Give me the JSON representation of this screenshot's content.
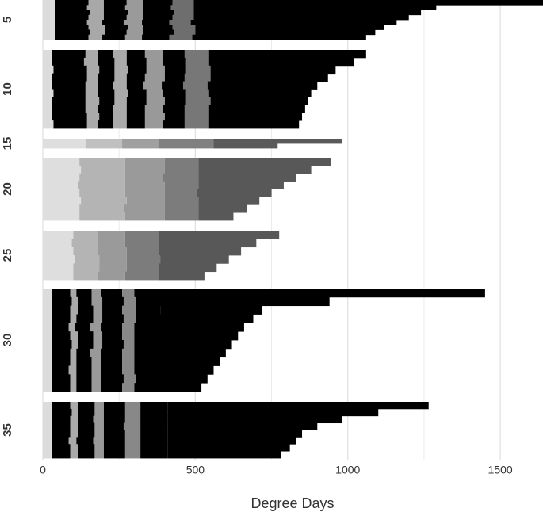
{
  "chart_data": {
    "type": "bar",
    "x_label": "Degree Days",
    "xlim": [
      0,
      1640
    ],
    "xticks": [
      0,
      500,
      1000,
      1500
    ],
    "minor_xticks": [
      250,
      750,
      1250
    ],
    "grid": true,
    "panels": [
      {
        "label": "5",
        "colors": [
          "#dcdcdc",
          "#000000",
          "#a8a8a8",
          "#000000",
          "#9a9a9a",
          "#000000",
          "#6e6e6e",
          "#000000"
        ],
        "rows": [
          [
            40,
            110,
            50,
            75,
            55,
            95,
            70,
            1145
          ],
          [
            40,
            105,
            55,
            70,
            60,
            90,
            75,
            795
          ],
          [
            40,
            115,
            45,
            80,
            50,
            100,
            65,
            745
          ],
          [
            40,
            110,
            50,
            75,
            55,
            95,
            70,
            705
          ],
          [
            40,
            105,
            50,
            70,
            60,
            90,
            70,
            675
          ],
          [
            40,
            110,
            55,
            75,
            50,
            95,
            75,
            620
          ],
          [
            40,
            115,
            50,
            70,
            55,
            100,
            70,
            590
          ],
          [
            40,
            110,
            45,
            75,
            55,
            90,
            75,
            570
          ]
        ]
      },
      {
        "label": "10",
        "colors": [
          "#dcdcdc",
          "#000000",
          "#aaaaaa",
          "#000000",
          "#aaaaaa",
          "#000000",
          "#999999",
          "#000000",
          "#777777",
          "#000000"
        ],
        "rows": [
          [
            30,
            110,
            40,
            50,
            45,
            60,
            60,
            70,
            80,
            515
          ],
          [
            30,
            105,
            45,
            55,
            40,
            65,
            55,
            75,
            75,
            475
          ],
          [
            35,
            110,
            40,
            50,
            45,
            60,
            60,
            70,
            80,
            410
          ],
          [
            30,
            115,
            35,
            55,
            40,
            60,
            65,
            65,
            85,
            385
          ],
          [
            30,
            110,
            40,
            50,
            45,
            55,
            60,
            70,
            80,
            360
          ],
          [
            35,
            105,
            40,
            55,
            45,
            60,
            55,
            75,
            75,
            335
          ],
          [
            30,
            110,
            45,
            50,
            40,
            65,
            60,
            70,
            80,
            320
          ],
          [
            30,
            110,
            40,
            50,
            45,
            60,
            60,
            70,
            80,
            315
          ],
          [
            30,
            115,
            40,
            45,
            45,
            60,
            65,
            65,
            80,
            305
          ],
          [
            35,
            110,
            35,
            50,
            45,
            60,
            60,
            70,
            80,
            295
          ]
        ]
      },
      {
        "label": "15",
        "colors": [
          "#dedede",
          "#c0c0c0",
          "#a0a0a0",
          "#808080",
          "#5a5a5a"
        ],
        "rows": [
          [
            140,
            120,
            120,
            180,
            420
          ],
          [
            140,
            120,
            120,
            180,
            210
          ]
        ]
      },
      {
        "label": "20",
        "colors": [
          "#dedede",
          "#b4b4b4",
          "#9a9a9a",
          "#7c7c7c",
          "#585858"
        ],
        "rows": [
          [
            120,
            150,
            130,
            110,
            435
          ],
          [
            125,
            145,
            130,
            110,
            370
          ],
          [
            120,
            150,
            125,
            115,
            320
          ],
          [
            115,
            155,
            130,
            110,
            280
          ],
          [
            120,
            150,
            130,
            105,
            245
          ],
          [
            125,
            150,
            125,
            110,
            200
          ],
          [
            120,
            145,
            135,
            110,
            160
          ],
          [
            120,
            150,
            130,
            110,
            115
          ]
        ]
      },
      {
        "label": "25",
        "colors": [
          "#dedede",
          "#b4b4b4",
          "#9a9a9a",
          "#7c7c7c",
          "#585858"
        ],
        "rows": [
          [
            100,
            80,
            90,
            110,
            395
          ],
          [
            95,
            85,
            90,
            110,
            320
          ],
          [
            100,
            80,
            95,
            105,
            270
          ],
          [
            105,
            80,
            90,
            110,
            225
          ],
          [
            100,
            85,
            90,
            105,
            190
          ],
          [
            100,
            80,
            90,
            110,
            150
          ]
        ]
      },
      {
        "label": "30",
        "colors": [
          "#dcdcdc",
          "#000000",
          "#aaaaaa",
          "#000000",
          "#999999",
          "#000000",
          "#888888",
          "#000000",
          "#000000"
        ],
        "rows": [
          [
            30,
            60,
            20,
            50,
            30,
            70,
            40,
            80,
            1070
          ],
          [
            30,
            65,
            20,
            45,
            35,
            70,
            40,
            75,
            560
          ],
          [
            30,
            60,
            25,
            50,
            30,
            65,
            45,
            80,
            335
          ],
          [
            30,
            60,
            20,
            55,
            30,
            70,
            40,
            75,
            310
          ],
          [
            30,
            55,
            20,
            50,
            35,
            70,
            40,
            80,
            280
          ],
          [
            30,
            60,
            25,
            50,
            30,
            65,
            40,
            80,
            260
          ],
          [
            30,
            65,
            20,
            50,
            30,
            70,
            35,
            80,
            240
          ],
          [
            30,
            60,
            20,
            45,
            35,
            70,
            40,
            80,
            220
          ],
          [
            30,
            60,
            20,
            50,
            30,
            70,
            40,
            80,
            200
          ],
          [
            30,
            55,
            25,
            50,
            30,
            70,
            40,
            80,
            180
          ],
          [
            30,
            60,
            20,
            50,
            30,
            75,
            40,
            75,
            160
          ],
          [
            30,
            60,
            20,
            50,
            30,
            70,
            40,
            80,
            140
          ]
        ]
      },
      {
        "label": "35",
        "colors": [
          "#dcdcdc",
          "#000000",
          "#aaaaaa",
          "#000000",
          "#999999",
          "#000000",
          "#888888",
          "#000000",
          "#000000"
        ],
        "rows": [
          [
            30,
            60,
            25,
            55,
            30,
            70,
            50,
            90,
            855
          ],
          [
            30,
            65,
            20,
            55,
            30,
            70,
            50,
            90,
            690
          ],
          [
            30,
            60,
            25,
            50,
            35,
            70,
            50,
            90,
            570
          ],
          [
            30,
            60,
            25,
            55,
            30,
            65,
            55,
            90,
            490
          ],
          [
            30,
            60,
            25,
            55,
            30,
            70,
            50,
            90,
            440
          ],
          [
            30,
            55,
            25,
            55,
            35,
            70,
            50,
            90,
            420
          ],
          [
            30,
            60,
            25,
            55,
            30,
            70,
            50,
            90,
            400
          ],
          [
            30,
            60,
            25,
            55,
            30,
            70,
            50,
            90,
            370
          ]
        ]
      }
    ]
  }
}
